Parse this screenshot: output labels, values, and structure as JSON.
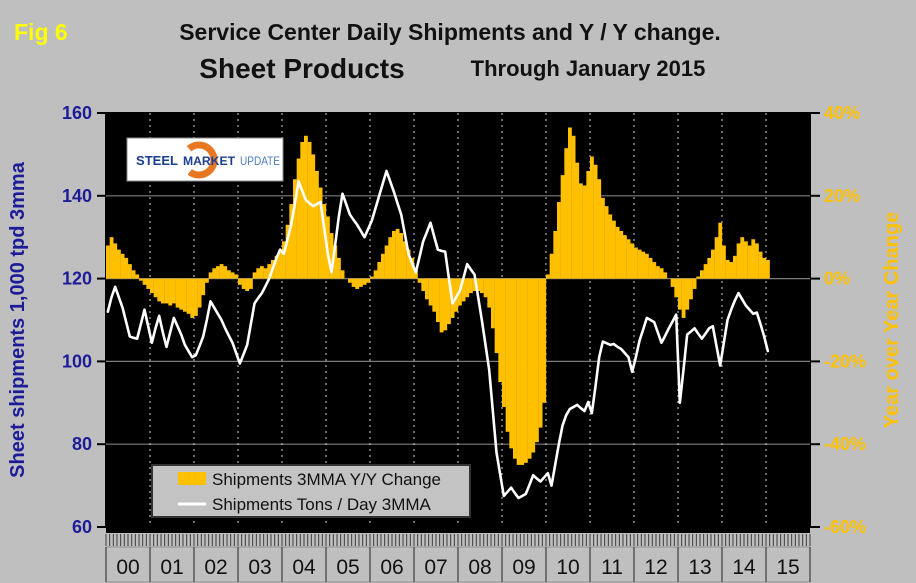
{
  "figure": {
    "tag": "Fig 6",
    "title": "Service Center Daily Shipments and Y / Y change.",
    "product": "Sheet Products",
    "period": "Through January 2015"
  },
  "logo": {
    "steel": "STEEL",
    "market": "MARKET",
    "update": "UPDATE"
  },
  "legend": {
    "bar": "Shipments 3MMA Y/Y Change",
    "line": "Shipments Tons / Day 3MMA"
  },
  "axes": {
    "left": {
      "title": "Sheet shipments 1,000 tpd 3mma",
      "ticks": [
        "160",
        "140",
        "120",
        "100",
        "80",
        "60"
      ]
    },
    "right": {
      "title": "Year over Year Change",
      "ticks": [
        "40%",
        "20%",
        "0%",
        "-20%",
        "-40%",
        "-60%"
      ]
    },
    "x": {
      "years": [
        "00",
        "01",
        "02",
        "03",
        "04",
        "05",
        "06",
        "07",
        "08",
        "09",
        "10",
        "11",
        "12",
        "13",
        "14",
        "15"
      ]
    }
  },
  "colors": {
    "background": "#BFBFBF",
    "plot_background": "#000000",
    "bar": "#FFC000",
    "line": "#FFFFFF",
    "left_axis": "#1C1C99",
    "right_axis": "#FFC000",
    "fig_tag": "#FFFF00",
    "grid_solid": "#7B7B7B",
    "grid_dashed": "#CFCFCF",
    "logo_orange": "#E87722"
  },
  "chart_data": {
    "type": "combo-bar-line",
    "title": "Service Center Daily Shipments and Y / Y change. — Sheet Products — Through January 2015",
    "frequency": "monthly",
    "x_start": "2000-01",
    "x_end": "2015-01",
    "x_tick_labels": [
      "00",
      "01",
      "02",
      "03",
      "04",
      "05",
      "06",
      "07",
      "08",
      "09",
      "10",
      "11",
      "12",
      "13",
      "14",
      "15"
    ],
    "left_axis": {
      "label": "Sheet shipments 1,000 tpd 3mma",
      "range": [
        60,
        160
      ],
      "tick_step": 20
    },
    "right_axis": {
      "label": "Year over Year Change",
      "unit": "%",
      "range": [
        -60,
        40
      ],
      "tick_step": 20
    },
    "grid": true,
    "legend_position": "inside-bottom-left",
    "plot_background": "black",
    "series": [
      {
        "name": "Shipments 3MMA Y/Y Change",
        "type": "bar",
        "axis": "right",
        "unit": "%",
        "color": "#FFC000",
        "values": [
          8,
          10,
          8.5,
          7,
          6,
          5,
          3.5,
          2,
          1,
          -0.5,
          -1.5,
          -2.5,
          -3.5,
          -4.5,
          -5.5,
          -6,
          -6,
          -6.5,
          -6,
          -7,
          -7.5,
          -8,
          -8.5,
          -9.5,
          -9,
          -7,
          -4,
          -1,
          1.5,
          2.5,
          3,
          3.5,
          3,
          2,
          1.5,
          1,
          -1.5,
          -2.5,
          -3,
          -2.5,
          1.5,
          2.5,
          3,
          2.5,
          3.5,
          4.5,
          5.5,
          7,
          9,
          13,
          18,
          24,
          29,
          33,
          34.5,
          33,
          30,
          26,
          22,
          18,
          15,
          11,
          8,
          5,
          2,
          0,
          -1,
          -2,
          -2.5,
          -2,
          -1.5,
          -1,
          0.5,
          2,
          4,
          6,
          8,
          10,
          11.5,
          12,
          11,
          9,
          7,
          5,
          2,
          -1,
          -3,
          -5,
          -6.5,
          -8,
          -10.5,
          -13,
          -12.5,
          -11,
          -9.5,
          -8,
          -6.5,
          -5.5,
          -4.5,
          -3.5,
          -3,
          -3,
          -3.5,
          -4.5,
          -7,
          -12,
          -18,
          -25,
          -31,
          -37,
          -41,
          -43.5,
          -45,
          -45,
          -44.5,
          -43.5,
          -42,
          -39.5,
          -36,
          -30,
          1,
          6,
          11.5,
          18.5,
          25,
          31.5,
          36.5,
          34.5,
          28,
          23,
          22.5,
          26,
          29.5,
          27.5,
          24,
          19.5,
          17.5,
          15.5,
          14,
          12.5,
          11.5,
          10.5,
          9.5,
          8.5,
          7.5,
          7,
          6.5,
          6,
          5,
          4,
          3,
          2.5,
          1.5,
          0,
          -2,
          -4.5,
          -7.5,
          -9.5,
          -7.5,
          -5,
          -2.5,
          0.5,
          2,
          3.5,
          5,
          7,
          10,
          13.5,
          8,
          4.5,
          4,
          5.5,
          8.5,
          10,
          9,
          8,
          9.5,
          8.5,
          6.5,
          5,
          4.5
        ]
      },
      {
        "name": "Shipments Tons / Day 3MMA",
        "type": "line",
        "axis": "left",
        "unit": "1,000 tons per day",
        "color": "#FFFFFF",
        "values": [
          112,
          115.5,
          118,
          115.5,
          113,
          109.5,
          106,
          105.7,
          105.5,
          109,
          112.5,
          108.5,
          104.5,
          108,
          111,
          107,
          103.5,
          107,
          110.5,
          108.5,
          106.5,
          104,
          102.5,
          101,
          101.5,
          103.7,
          106,
          110,
          114.5,
          113,
          111.5,
          110,
          108,
          106.2,
          104.5,
          102,
          99.5,
          101.7,
          104,
          109,
          114,
          115.3,
          116.5,
          118.2,
          120,
          122.5,
          125,
          127,
          126,
          129.5,
          133,
          138,
          143.5,
          141.2,
          139,
          138.2,
          137.5,
          138,
          138.5,
          132.2,
          126,
          121.5,
          128.2,
          135,
          140.5,
          138,
          135.5,
          134.2,
          133,
          131.5,
          130,
          132,
          134,
          137,
          140,
          143,
          146,
          143.5,
          141,
          138.2,
          135.5,
          130.8,
          126,
          123.7,
          121.5,
          125.2,
          129,
          131.2,
          133.5,
          130.2,
          127,
          126.7,
          126.5,
          120.2,
          114,
          115.5,
          117,
          120.2,
          123.5,
          122.2,
          121,
          115.5,
          110,
          104,
          98,
          88,
          78,
          72.7,
          67.5,
          68.5,
          69.5,
          68.2,
          67,
          67.5,
          68,
          70.2,
          72.5,
          71.7,
          71,
          72,
          73,
          70,
          75,
          80,
          84.5,
          87,
          88.5,
          89,
          89.5,
          88.7,
          88,
          90.2,
          87.5,
          94,
          101,
          104.8,
          104.4,
          104,
          104.2,
          103.5,
          103,
          102,
          101,
          97.5,
          101,
          105,
          107.7,
          110.5,
          110,
          109.5,
          107,
          104.5,
          106.2,
          108,
          109.6,
          111.3,
          90,
          98,
          106.5,
          107.2,
          108,
          106.7,
          105.5,
          106.7,
          108,
          108.5,
          103.7,
          99,
          104.5,
          110,
          112.5,
          114.7,
          116.5,
          115,
          113.5,
          112.5,
          111.5,
          111.8,
          109,
          106,
          102.5
        ]
      }
    ]
  }
}
